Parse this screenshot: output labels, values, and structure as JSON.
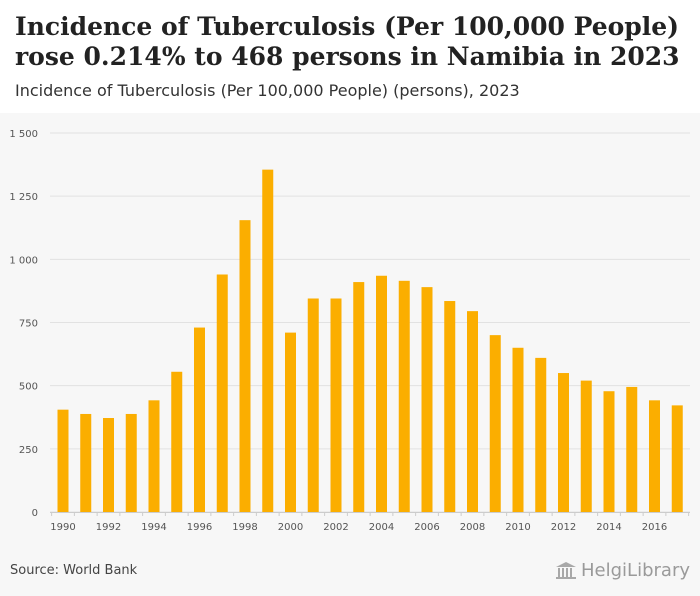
{
  "header": {
    "title": "Incidence of Tuberculosis (Per 100,000 People) rose 0.214% to 468 persons in Namibia in 2023",
    "subtitle": "Incidence of Tuberculosis (Per 100,000 People) (persons), 2023"
  },
  "footer": {
    "source": "Source: World Bank",
    "logo_text": "HelgiLibrary"
  },
  "colors": {
    "bar": "#FBAE00",
    "background": "#f7f7f7",
    "grid": "#e2e2e2"
  },
  "chart_data": {
    "type": "bar",
    "title": "Incidence of Tuberculosis (Per 100,000 People) (persons), 2023",
    "xlabel": "",
    "ylabel": "",
    "ylim": [
      0,
      1500
    ],
    "yticks": [
      0,
      250,
      500,
      750,
      1000,
      1250,
      1500
    ],
    "ytick_labels": [
      "0",
      "250",
      "500",
      "750",
      "1 000",
      "1 250",
      "1 500"
    ],
    "grid": true,
    "categories": [
      1990,
      1991,
      1992,
      1993,
      1994,
      1995,
      1996,
      1997,
      1998,
      1999,
      2000,
      2001,
      2002,
      2003,
      2004,
      2005,
      2006,
      2007,
      2008,
      2009,
      2010,
      2011,
      2012,
      2013,
      2014,
      2015,
      2016,
      2017
    ],
    "xtick_labels": [
      "1990",
      "1992",
      "1994",
      "1996",
      "1998",
      "2000",
      "2002",
      "2004",
      "2006",
      "2008",
      "2010",
      "2012",
      "2014",
      "2016"
    ],
    "values": [
      405,
      388,
      372,
      388,
      442,
      555,
      730,
      940,
      1155,
      1355,
      710,
      845,
      845,
      910,
      935,
      915,
      890,
      835,
      795,
      700,
      650,
      610,
      550,
      520,
      478,
      495,
      442,
      422
    ]
  }
}
